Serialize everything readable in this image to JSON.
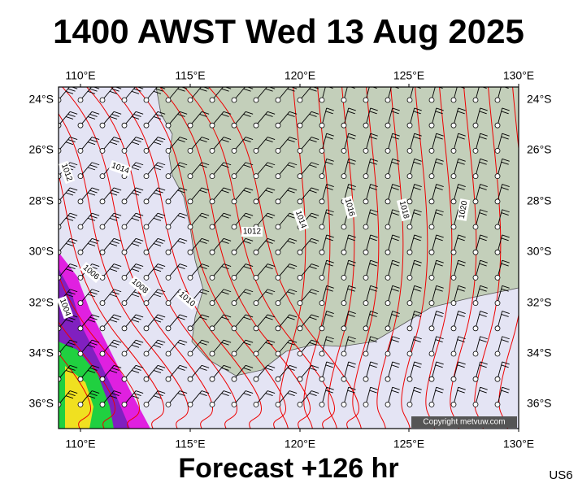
{
  "header": {
    "title": "1400 AWST Wed 13 Aug 2025"
  },
  "map": {
    "lon_labels": [
      "110°E",
      "115°E",
      "120°E",
      "125°E",
      "130°E"
    ],
    "lat_labels": [
      "24°S",
      "26°S",
      "28°S",
      "30°S",
      "32°S",
      "34°S",
      "36°S"
    ],
    "isobar_labels": [
      "1012",
      "1014",
      "1012",
      "1014",
      "1016",
      "1018",
      "1020",
      "1006",
      "1008",
      "1010",
      "1004"
    ],
    "copyright": "Copyright metvuw.com"
  },
  "footer": {
    "forecast": "Forecast +126 hr",
    "model_code": "US6"
  }
}
